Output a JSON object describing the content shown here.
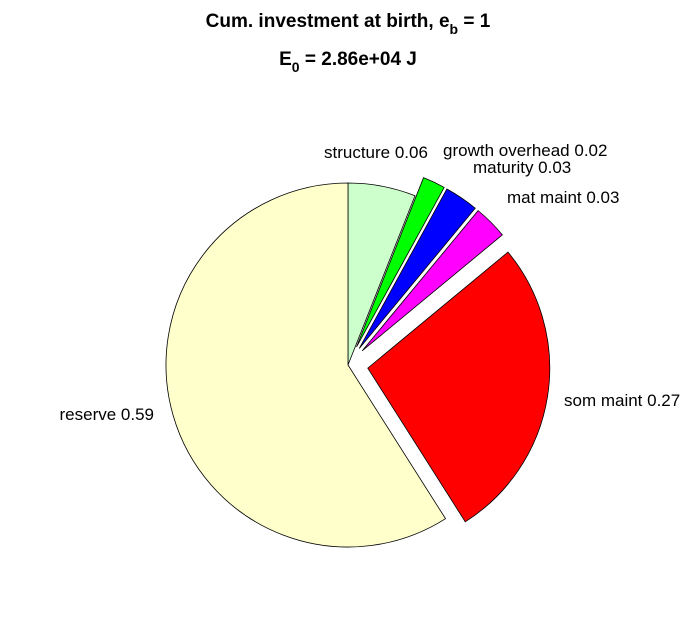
{
  "chart_data": {
    "type": "pie",
    "title": {
      "text": "Cum. investment at birth, e",
      "subscript": "b",
      "suffix": " = 1"
    },
    "subtitle": {
      "text": "E",
      "subscript": "0",
      "suffix": " = 2.86e+04 J"
    },
    "categories": [
      "structure 0.06",
      "growth overhead 0.02",
      "maturity 0.03",
      "mat maint 0.03",
      "som maint 0.27",
      "reserve 0.59"
    ],
    "values": [
      0.06,
      0.02,
      0.03,
      0.03,
      0.27,
      0.59
    ],
    "colors": [
      "#ccffcc",
      "#00ff00",
      "#0000ff",
      "#ff00ff",
      "#ff0000",
      "#ffffcc"
    ],
    "exploded": [
      false,
      true,
      true,
      true,
      true,
      false
    ]
  }
}
